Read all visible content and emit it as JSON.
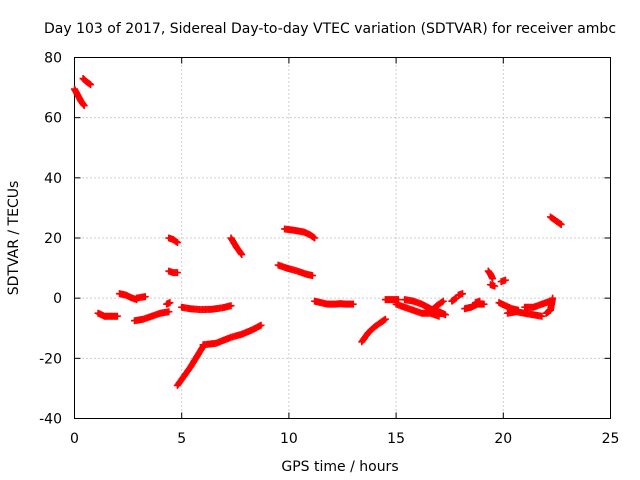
{
  "chart_data": {
    "type": "scatter",
    "title": "Day 103 of 2017, Sidereal Day-to-day VTEC variation (SDTVAR) for receiver ambc",
    "xlabel": "GPS time / hours",
    "ylabel": "SDTVAR / TECUs",
    "xlim": [
      0,
      25
    ],
    "ylim": [
      -40,
      80
    ],
    "xticks": [
      0,
      5,
      10,
      15,
      20,
      25
    ],
    "yticks": [
      -40,
      -20,
      0,
      20,
      40,
      60,
      80
    ],
    "grid": true,
    "marker": "plus",
    "color": "#ff0000",
    "segments": [
      {
        "x": [
          0.0,
          0.15,
          0.3,
          0.45
        ],
        "y": [
          69.5,
          67.5,
          65.5,
          64.0
        ]
      },
      {
        "x": [
          0.4,
          0.55,
          0.75
        ],
        "y": [
          73.0,
          72.0,
          71.0
        ]
      },
      {
        "x": [
          1.1,
          1.4,
          1.7,
          2.0
        ],
        "y": [
          -5.0,
          -6.0,
          -6.0,
          -6.0
        ]
      },
      {
        "x": [
          2.1,
          2.4,
          2.7,
          2.9
        ],
        "y": [
          1.5,
          1.0,
          0.0,
          -0.5
        ]
      },
      {
        "x": [
          2.9,
          3.1,
          3.3
        ],
        "y": [
          0.0,
          0.3,
          0.5
        ]
      },
      {
        "x": [
          2.8,
          3.2,
          3.6,
          4.0,
          4.4
        ],
        "y": [
          -7.5,
          -7.0,
          -6.0,
          -5.0,
          -4.5
        ]
      },
      {
        "x": [
          4.3,
          4.45
        ],
        "y": [
          -2.0,
          -1.5
        ]
      },
      {
        "x": [
          4.4,
          4.6,
          4.8
        ],
        "y": [
          20.0,
          19.5,
          18.5
        ]
      },
      {
        "x": [
          4.4,
          4.6,
          4.8
        ],
        "y": [
          9.0,
          8.5,
          8.5
        ]
      },
      {
        "x": [
          4.8,
          5.1,
          5.4,
          5.7,
          6.0
        ],
        "y": [
          -29.0,
          -26.0,
          -23.0,
          -19.5,
          -16.0
        ]
      },
      {
        "x": [
          5.0,
          5.4,
          5.9,
          6.4,
          6.9,
          7.3
        ],
        "y": [
          -3.0,
          -3.5,
          -3.8,
          -3.7,
          -3.2,
          -2.5
        ]
      },
      {
        "x": [
          6.0,
          6.6,
          7.3,
          7.8,
          8.3,
          8.7
        ],
        "y": [
          -15.5,
          -15.0,
          -13.0,
          -12.0,
          -10.5,
          -9.0
        ]
      },
      {
        "x": [
          7.3,
          7.55,
          7.8
        ],
        "y": [
          20.0,
          17.0,
          14.5
        ]
      },
      {
        "x": [
          9.5,
          9.9,
          10.4,
          10.8,
          11.1
        ],
        "y": [
          11.0,
          10.0,
          9.0,
          8.0,
          7.5
        ]
      },
      {
        "x": [
          9.8,
          10.3,
          10.7,
          11.0,
          11.2
        ],
        "y": [
          23.0,
          22.5,
          22.0,
          21.0,
          20.0
        ]
      },
      {
        "x": [
          11.2,
          11.5,
          11.8,
          12.1,
          12.4,
          12.7,
          13.0
        ],
        "y": [
          -1.0,
          -1.5,
          -2.0,
          -2.0,
          -1.8,
          -2.0,
          -2.0
        ]
      },
      {
        "x": [
          13.4,
          13.7,
          14.0,
          14.3,
          14.5
        ],
        "y": [
          -14.5,
          -11.5,
          -9.5,
          -8.0,
          -7.0
        ]
      },
      {
        "x": [
          14.5,
          14.8,
          15.1
        ],
        "y": [
          -0.5,
          -0.5,
          -0.5
        ]
      },
      {
        "x": [
          15.0,
          15.4,
          15.8,
          16.2,
          16.6,
          17.0
        ],
        "y": [
          -2.0,
          -3.0,
          -4.0,
          -5.0,
          -5.0,
          -6.0
        ]
      },
      {
        "x": [
          15.4,
          15.8,
          16.2,
          16.6,
          17.0,
          17.3
        ],
        "y": [
          -0.5,
          -1.0,
          -2.0,
          -3.5,
          -4.5,
          -5.5
        ]
      },
      {
        "x": [
          16.6,
          16.9,
          17.2
        ],
        "y": [
          -4.5,
          -2.5,
          -1.0
        ]
      },
      {
        "x": [
          17.6,
          17.8
        ],
        "y": [
          -1.0,
          0.0
        ]
      },
      {
        "x": [
          17.9,
          18.1
        ],
        "y": [
          1.0,
          1.5
        ]
      },
      {
        "x": [
          18.2,
          18.5,
          18.8,
          19.1
        ],
        "y": [
          -3.5,
          -3.0,
          -2.0,
          -2.0
        ]
      },
      {
        "x": [
          18.7,
          18.9
        ],
        "y": [
          -1.5,
          -1.0
        ]
      },
      {
        "x": [
          19.3,
          19.4,
          19.5
        ],
        "y": [
          9.0,
          8.0,
          6.5
        ]
      },
      {
        "x": [
          19.4,
          19.6
        ],
        "y": [
          4.5,
          4.0
        ]
      },
      {
        "x": [
          19.9,
          20.1
        ],
        "y": [
          5.5,
          6.0
        ]
      },
      {
        "x": [
          19.8,
          20.1,
          20.4,
          20.7
        ],
        "y": [
          -1.5,
          -2.5,
          -3.5,
          -4.0
        ]
      },
      {
        "x": [
          20.2,
          20.6,
          21.0,
          21.4,
          21.8
        ],
        "y": [
          -5.0,
          -4.5,
          -5.0,
          -5.5,
          -6.0
        ]
      },
      {
        "x": [
          21.0,
          21.4,
          21.8,
          22.2
        ],
        "y": [
          -3.0,
          -3.0,
          -2.0,
          -1.0
        ]
      },
      {
        "x": [
          22.0,
          22.2,
          22.3
        ],
        "y": [
          -5.0,
          -4.0,
          0.0
        ]
      },
      {
        "x": [
          22.2,
          22.5,
          22.7
        ],
        "y": [
          27.0,
          25.5,
          24.5
        ]
      }
    ]
  }
}
